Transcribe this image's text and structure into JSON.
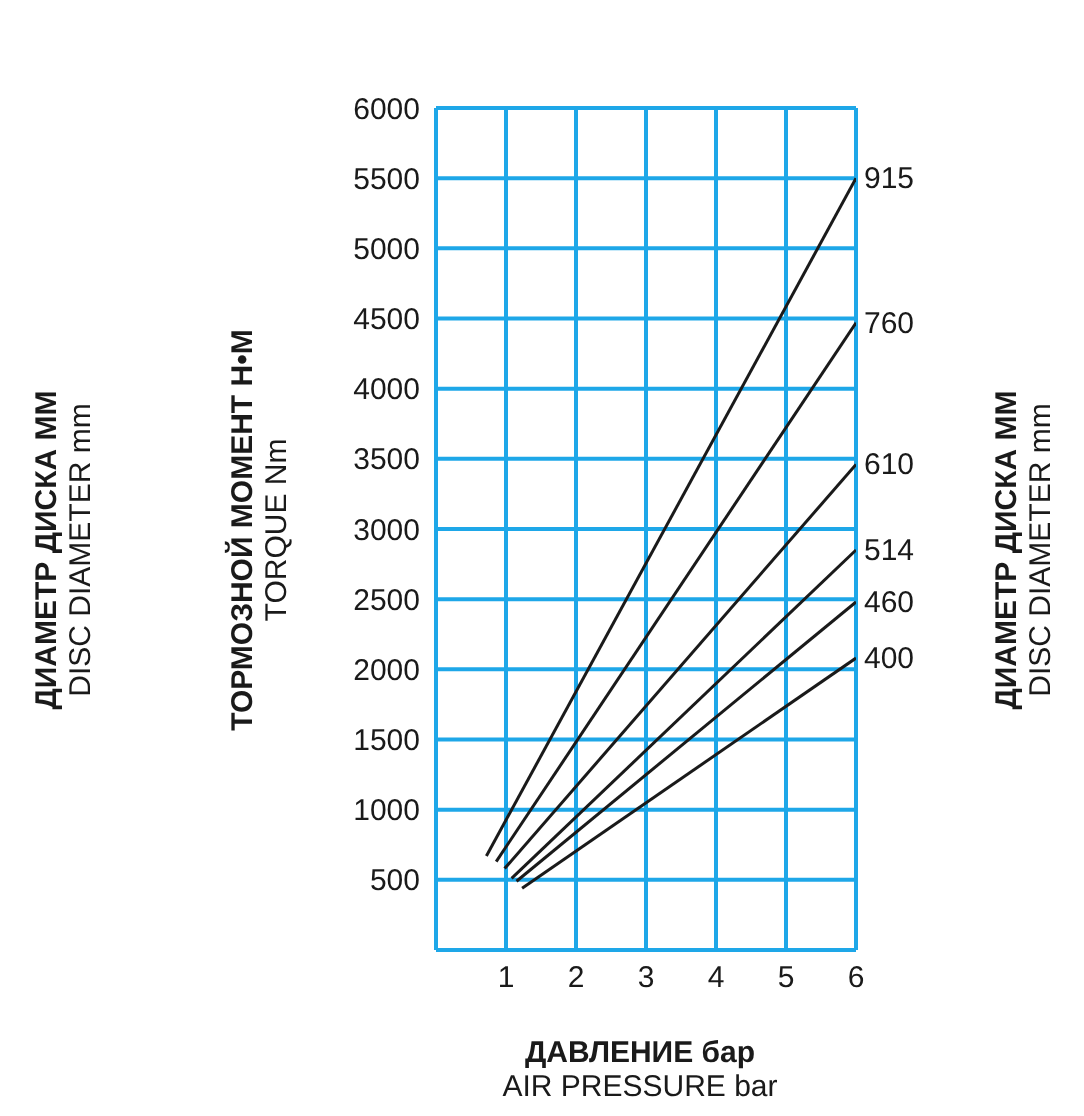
{
  "chart_data": {
    "type": "line",
    "xlabel": "ДАВЛЕНИЕ бар\nAIR PRESSURE bar",
    "ylabel": "ТОРМОЗНОЙ МОМЕНТ Н•М\nTORQUE Nm",
    "legend_title": "ДИАМЕТР ДИСКА ММ\nDISC DIAMETER mm",
    "xlim": [
      0,
      6
    ],
    "xticks": [
      1,
      2,
      3,
      4,
      5,
      6
    ],
    "ylim": [
      0,
      6000
    ],
    "yticks": [
      500,
      1000,
      1500,
      2000,
      2500,
      3000,
      3500,
      4000,
      4500,
      5000,
      5500,
      6000
    ],
    "grid": true,
    "marker": "none",
    "line_style": "solid",
    "series": [
      {
        "name": "915",
        "color": "#1a1a1a",
        "x": [
          0.72,
          6
        ],
        "values": [
          670,
          5500
        ]
      },
      {
        "name": "760",
        "color": "#1a1a1a",
        "x": [
          0.86,
          6
        ],
        "values": [
          630,
          4470
        ]
      },
      {
        "name": "610",
        "color": "#1a1a1a",
        "x": [
          0.98,
          6
        ],
        "values": [
          580,
          3460
        ]
      },
      {
        "name": "514",
        "color": "#1a1a1a",
        "x": [
          1.08,
          6
        ],
        "values": [
          510,
          2850
        ]
      },
      {
        "name": "460",
        "color": "#1a1a1a",
        "x": [
          1.15,
          6
        ],
        "values": [
          490,
          2480
        ]
      },
      {
        "name": "400",
        "color": "#1a1a1a",
        "x": [
          1.23,
          6
        ],
        "values": [
          440,
          2080
        ]
      }
    ]
  }
}
